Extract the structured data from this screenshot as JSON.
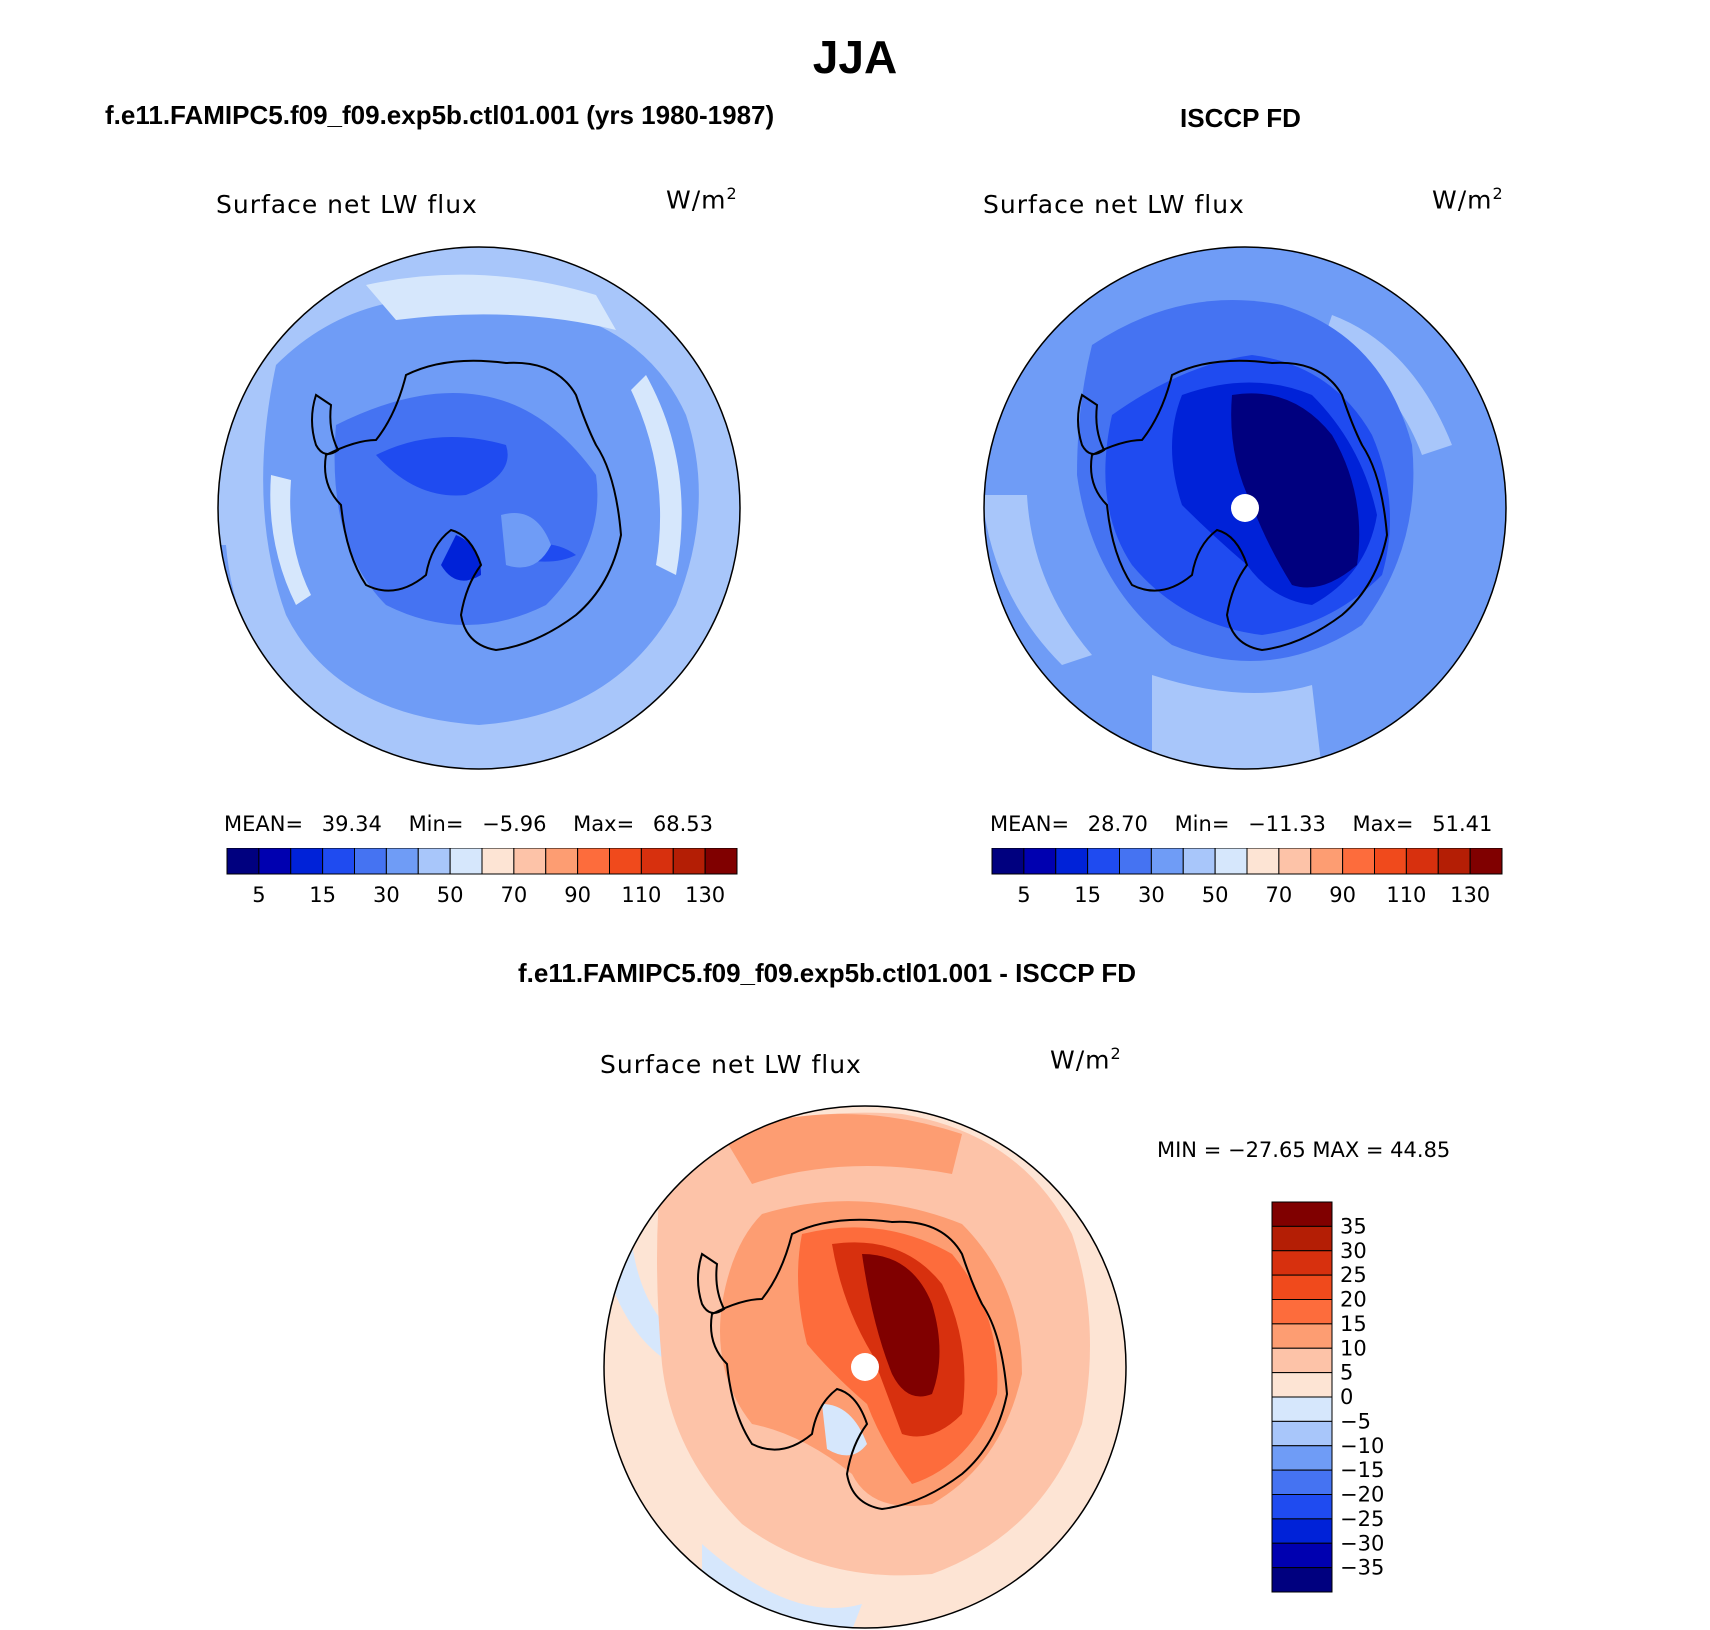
{
  "figure": {
    "season": "JJA",
    "colors": {
      "blue_levels": [
        "#00007f",
        "#0000b0",
        "#0022d8",
        "#1f4bf0",
        "#4573f2",
        "#6f9cf6",
        "#a8c6fa",
        "#d6e7fc"
      ],
      "red_levels": [
        "#fde4d4",
        "#fdc3a8",
        "#fd9d72",
        "#fd6c3c",
        "#f04a1c",
        "#d7300e",
        "#b41e05",
        "#800000"
      ],
      "diff_colors": [
        "#00007f",
        "#0000b0",
        "#0022d8",
        "#1f4bf0",
        "#4573f2",
        "#6f9cf6",
        "#a8c6fa",
        "#d6e7fc",
        "#fde4d4",
        "#fdc3a8",
        "#fd9d72",
        "#fd6c3c",
        "#f04a1c",
        "#d7300e",
        "#b41e05",
        "#800000"
      ]
    }
  },
  "panels": [
    {
      "id": "model",
      "title": "f.e11.FAMIPC5.f09_f09.exp5b.ctl01.001 (yrs 1980-1987)",
      "variable": "Surface net LW flux",
      "units": "W/m",
      "units_sup": "2",
      "stats": {
        "mean_label": "MEAN=",
        "mean": "39.34",
        "min_label": "Min=",
        "min": "−5.96",
        "max_label": "Max=",
        "max": "68.53"
      },
      "colorbar_labels": [
        "5",
        "15",
        "30",
        "50",
        "70",
        "90",
        "110",
        "130"
      ]
    },
    {
      "id": "obs",
      "title": "ISCCP FD",
      "variable": "Surface net LW flux",
      "units": "W/m",
      "units_sup": "2",
      "stats": {
        "mean_label": "MEAN=",
        "mean": "28.70",
        "min_label": "Min=",
        "min": "−11.33",
        "max_label": "Max=",
        "max": "51.41"
      },
      "colorbar_labels": [
        "5",
        "15",
        "30",
        "50",
        "70",
        "90",
        "110",
        "130"
      ]
    },
    {
      "id": "diff",
      "title": "f.e11.FAMIPC5.f09_f09.exp5b.ctl01.001 - ISCCP FD",
      "variable": "Surface net LW flux",
      "units": "W/m",
      "units_sup": "2",
      "stats_line": "MIN = −27.65 MAX =   44.85",
      "colorbar_labels": [
        "35",
        "30",
        "25",
        "20",
        "15",
        "10",
        "5",
        "0",
        "−5",
        "−10",
        "−15",
        "−20",
        "−25",
        "−30",
        "−35"
      ]
    }
  ],
  "chart_data": [
    {
      "type": "heatmap",
      "title": "f.e11.FAMIPC5.f09_f09.exp5b.ctl01.001 (yrs 1980-1987)",
      "subtitle": "Surface net LW flux",
      "projection": "south-polar-stereographic",
      "units": "W/m2",
      "mean": 39.34,
      "min": -5.96,
      "max": 68.53,
      "levels": [
        5,
        10,
        15,
        20,
        30,
        40,
        50,
        60,
        70,
        80,
        90,
        100,
        110,
        120,
        130
      ],
      "colorbar_labels": [
        5,
        15,
        30,
        50,
        70,
        90,
        110,
        130
      ]
    },
    {
      "type": "heatmap",
      "title": "ISCCP FD",
      "subtitle": "Surface net LW flux",
      "projection": "south-polar-stereographic",
      "units": "W/m2",
      "mean": 28.7,
      "min": -11.33,
      "max": 51.41,
      "levels": [
        5,
        10,
        15,
        20,
        30,
        40,
        50,
        60,
        70,
        80,
        90,
        100,
        110,
        120,
        130
      ],
      "colorbar_labels": [
        5,
        15,
        30,
        50,
        70,
        90,
        110,
        130
      ]
    },
    {
      "type": "heatmap",
      "title": "f.e11.FAMIPC5.f09_f09.exp5b.ctl01.001 - ISCCP FD",
      "subtitle": "Surface net LW flux",
      "projection": "south-polar-stereographic",
      "units": "W/m2",
      "min": -27.65,
      "max": 44.85,
      "levels": [
        -35,
        -30,
        -25,
        -20,
        -15,
        -10,
        -5,
        0,
        5,
        10,
        15,
        20,
        25,
        30,
        35
      ],
      "colorbar_labels": [
        35,
        30,
        25,
        20,
        15,
        10,
        5,
        0,
        -5,
        -10,
        -15,
        -20,
        -25,
        -30,
        -35
      ],
      "legend": "right"
    }
  ]
}
